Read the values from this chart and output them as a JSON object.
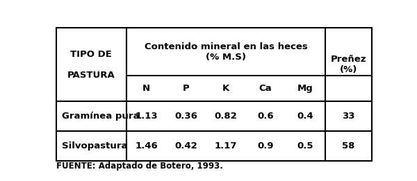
{
  "header_col1_line1": "TIPO DE",
  "header_col1_line2": "PASTURA",
  "header_col2_line1": "Contenido mineral en las heces",
  "header_col2_line2": "(% M.S)",
  "header_minerals": [
    "N",
    "P",
    "K",
    "Ca",
    "Mg"
  ],
  "header_col3_line1": "Preñez",
  "header_col3_line2": "(%)",
  "rows": [
    {
      "pastura": "Gramínea pura",
      "values": [
        "1.13",
        "0.36",
        "0.82",
        "0.6",
        "0.4"
      ],
      "prenez": "33"
    },
    {
      "pastura": "Silvopastura",
      "values": [
        "1.46",
        "0.42",
        "1.17",
        "0.9",
        "0.5"
      ],
      "prenez": "58"
    }
  ],
  "footer": "FUENTE: Adaptado de Botero, 1993.",
  "bg_color": "#ffffff",
  "text_color": "#000000",
  "border_color": "#000000",
  "fig_width": 6.0,
  "fig_height": 2.61,
  "dpi": 100
}
